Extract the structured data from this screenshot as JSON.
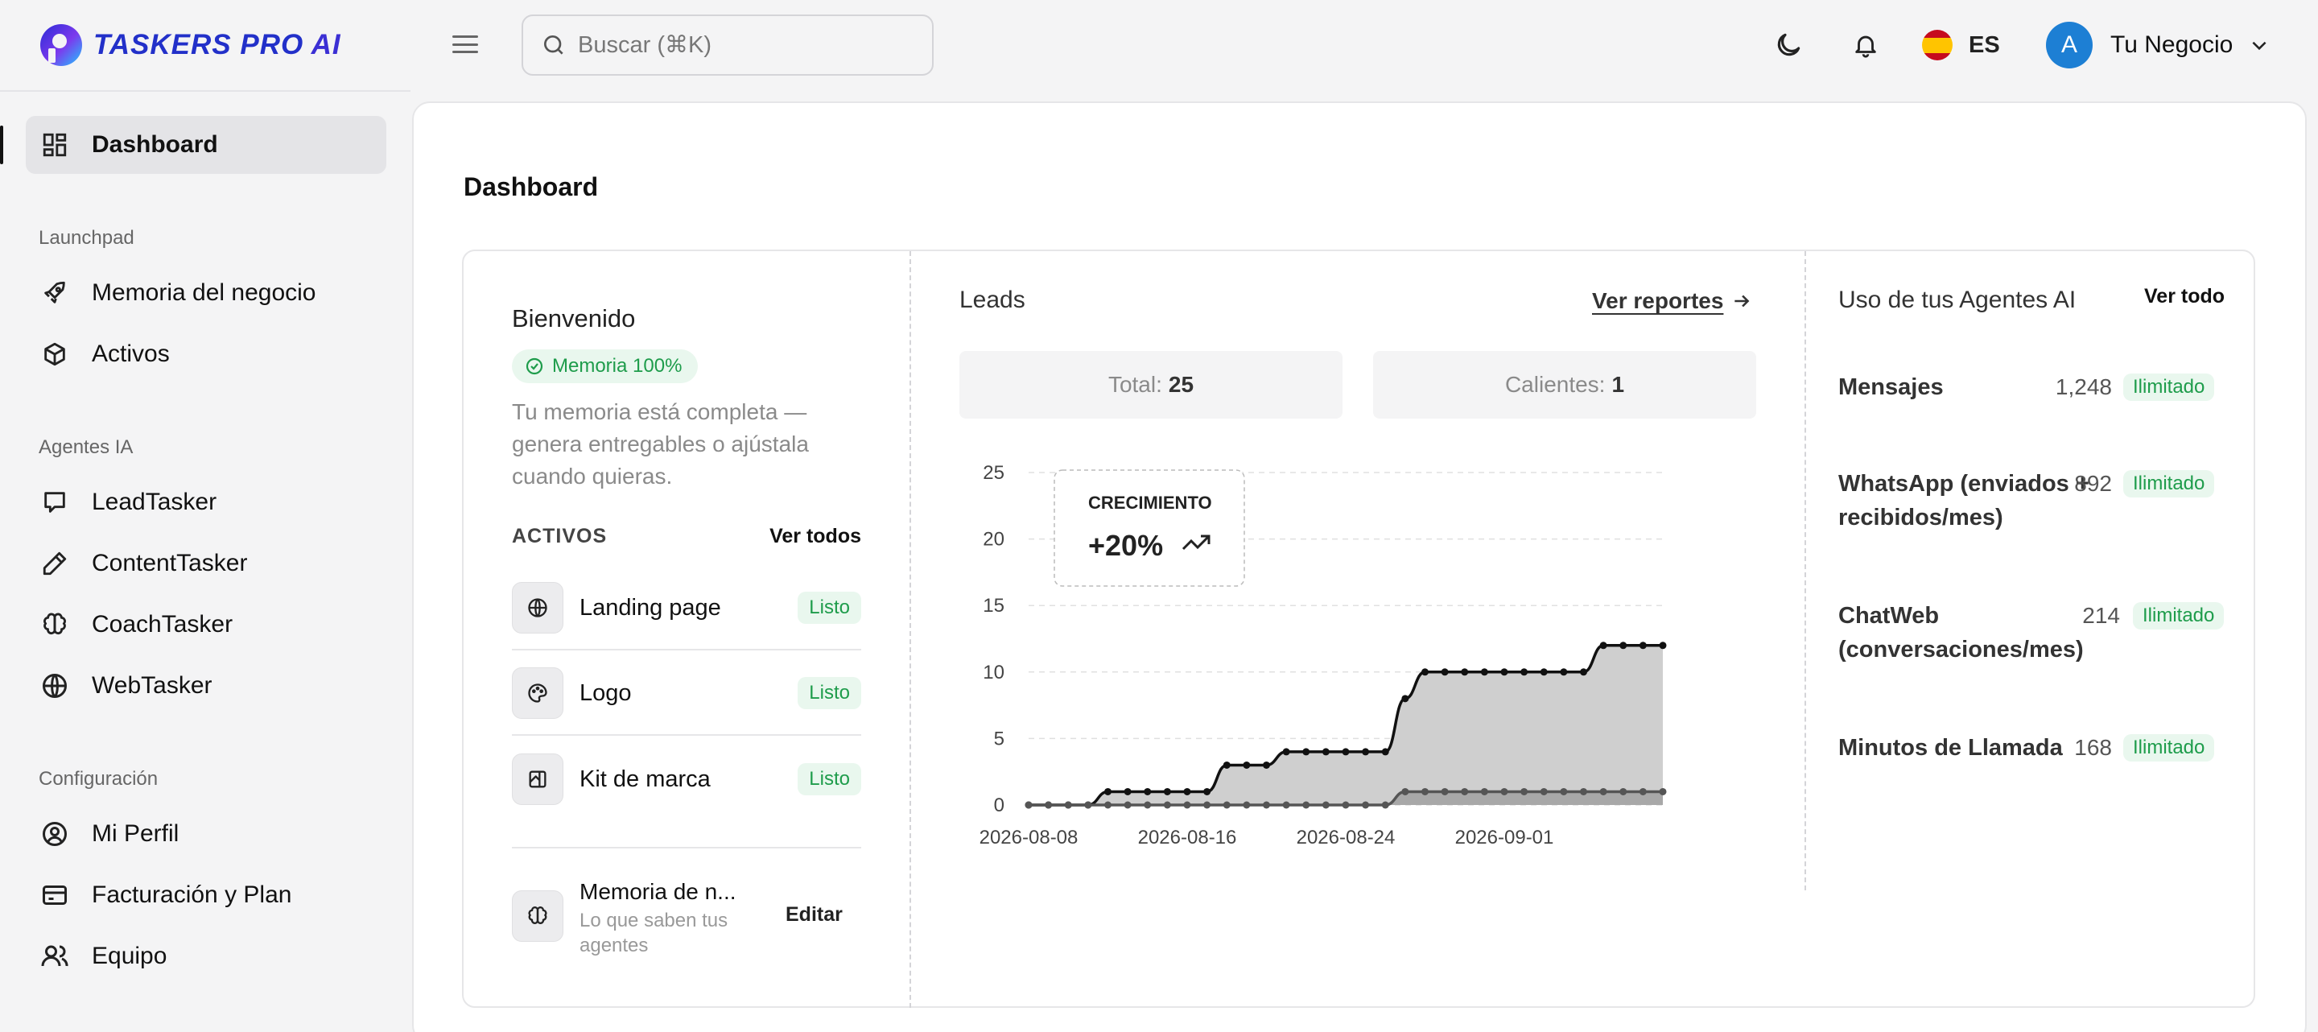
{
  "brand": {
    "name": "TASKERS PRO",
    "suffix": "AI"
  },
  "search": {
    "placeholder": "Buscar (⌘K)"
  },
  "header": {
    "lang": "ES",
    "avatar_letter": "A",
    "business_name": "Tu Negocio"
  },
  "sidebar": {
    "items": [
      {
        "label": "Dashboard",
        "icon": "grid-icon"
      },
      {
        "label": "Memoria del negocio",
        "icon": "rocket-icon"
      },
      {
        "label": "Activos",
        "icon": "box-icon"
      },
      {
        "label": "LeadTasker",
        "icon": "chat-icon"
      },
      {
        "label": "ContentTasker",
        "icon": "pencil-icon"
      },
      {
        "label": "CoachTasker",
        "icon": "brain-icon"
      },
      {
        "label": "WebTasker",
        "icon": "www-icon"
      },
      {
        "label": "Mi Perfil",
        "icon": "user-circle-icon"
      },
      {
        "label": "Facturación y Plan",
        "icon": "credit-card-icon"
      },
      {
        "label": "Equipo",
        "icon": "users-icon"
      }
    ],
    "sections": [
      "Launchpad",
      "Agentes IA",
      "Configuración"
    ]
  },
  "page": {
    "title": "Dashboard"
  },
  "welcome": {
    "title": "Bienvenido",
    "badge": "Memoria 100%",
    "description": "Tu memoria está completa — genera entregables o ajústala cuando quieras.",
    "assets_header": "ACTIVOS",
    "assets_link": "Ver todos",
    "assets": [
      {
        "name": "Landing page",
        "status": "Listo",
        "icon": "globe-icon"
      },
      {
        "name": "Logo",
        "status": "Listo",
        "icon": "palette-icon"
      },
      {
        "name": "Kit de marca",
        "status": "Listo",
        "icon": "brand-kit-icon"
      }
    ],
    "memory": {
      "title": "Memoria de n...",
      "subtitle": "Lo que saben tus agentes",
      "action": "Editar"
    }
  },
  "leads": {
    "title": "Leads",
    "link": "Ver reportes",
    "total_label": "Total:",
    "total_value": "25",
    "hot_label": "Calientes:",
    "hot_value": "1",
    "growth_label": "CRECIMIENTO",
    "growth_value": "+20%"
  },
  "chart_data": {
    "type": "area",
    "x_ticks": [
      "2026-08-08",
      "2026-08-16",
      "2026-08-24",
      "2026-09-01"
    ],
    "ylim": [
      0,
      25
    ],
    "y_ticks": [
      0,
      5,
      10,
      15,
      20,
      25
    ],
    "grid": true,
    "series": [
      {
        "values": [
          0,
          0,
          0,
          0,
          1,
          1,
          1,
          1,
          1,
          1,
          3,
          3,
          3,
          4,
          4,
          4,
          4,
          4,
          4,
          8,
          10,
          10,
          10,
          10,
          10,
          10,
          10,
          10,
          10,
          12,
          12,
          12,
          12
        ],
        "color": "#111111"
      },
      {
        "values": [
          0,
          0,
          0,
          0,
          0,
          0,
          0,
          0,
          0,
          0,
          0,
          0,
          0,
          0,
          0,
          0,
          0,
          0,
          0,
          1,
          1,
          1,
          1,
          1,
          1,
          1,
          1,
          1,
          1,
          1,
          1,
          1,
          1
        ],
        "color": "#555555"
      }
    ]
  },
  "usage": {
    "title": "Uso de tus Agentes AI",
    "link": "Ver todo",
    "rows": [
      {
        "name": "Mensajes",
        "value": "1,248",
        "limit": "Ilimitado"
      },
      {
        "name": "WhatsApp (enviados + recibidos/mes)",
        "value": "892",
        "limit": "Ilimitado"
      },
      {
        "name": "ChatWeb (conversaciones/mes)",
        "value": "214",
        "limit": "Ilimitado"
      },
      {
        "name": "Minutos de Llamada",
        "value": "168",
        "limit": "Ilimitado"
      }
    ]
  }
}
